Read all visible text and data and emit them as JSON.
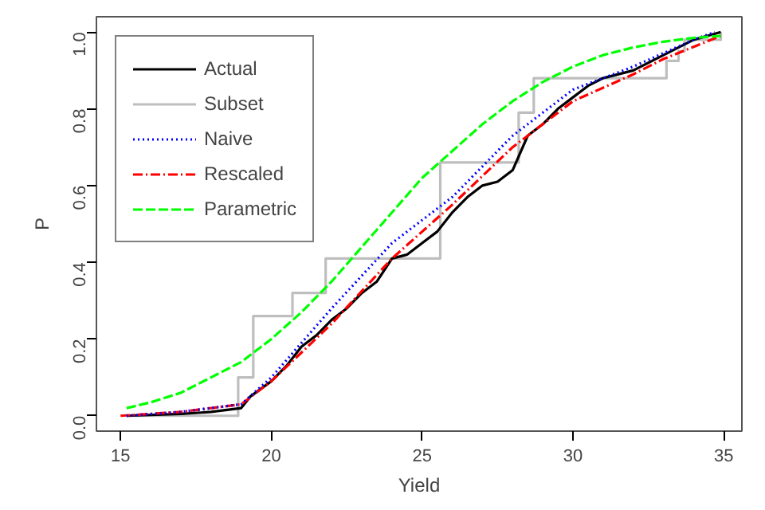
{
  "chart_data": {
    "type": "line",
    "xlabel": "Yield",
    "ylabel": "P",
    "xlim": [
      14.2,
      35.6
    ],
    "ylim": [
      -0.04,
      1.04
    ],
    "xticks": [
      15,
      20,
      25,
      30,
      35
    ],
    "yticks": [
      {
        "value": 0,
        "label": "0.0"
      },
      0.2,
      0.4,
      0.6,
      0.8,
      {
        "value": 1,
        "label": "1.0"
      }
    ],
    "grid": false,
    "legend": "top left",
    "series": [
      {
        "name": "Actual",
        "color": "#000000",
        "line_style": "solid",
        "x": [
          15.2,
          17,
          18,
          19,
          19.3,
          20,
          20.5,
          21,
          21.5,
          22,
          22.5,
          23,
          23.5,
          24,
          24.5,
          25,
          25.5,
          26,
          26.5,
          27,
          27.5,
          28,
          28.5,
          29,
          29.5,
          30,
          30.5,
          31,
          32,
          33,
          34,
          34.9
        ],
        "values": [
          0.0,
          0.005,
          0.01,
          0.02,
          0.05,
          0.09,
          0.13,
          0.18,
          0.21,
          0.25,
          0.28,
          0.32,
          0.35,
          0.41,
          0.42,
          0.45,
          0.48,
          0.53,
          0.57,
          0.6,
          0.61,
          0.64,
          0.73,
          0.76,
          0.8,
          0.83,
          0.86,
          0.88,
          0.9,
          0.94,
          0.98,
          1.0
        ]
      },
      {
        "name": "Subset",
        "color": "#bebebe",
        "type": "step",
        "line_style": "solid",
        "x": [
          15.2,
          18.9,
          19.4,
          20.7,
          21.8,
          25.6,
          28.2,
          28.7,
          33.1,
          33.5,
          33.7,
          34.9
        ],
        "values": [
          0.0,
          0.1,
          0.26,
          0.32,
          0.41,
          0.66,
          0.79,
          0.88,
          0.925,
          0.95,
          0.98,
          1.0
        ]
      },
      {
        "name": "Naive",
        "color": "#0000ff",
        "line_style": "dotted",
        "x": [
          15.2,
          17,
          19,
          20,
          22,
          24,
          26,
          28,
          30,
          32,
          34,
          34.7
        ],
        "values": [
          0.0,
          0.01,
          0.03,
          0.1,
          0.28,
          0.45,
          0.57,
          0.73,
          0.85,
          0.91,
          0.98,
          1.0
        ]
      },
      {
        "name": "Rescaled",
        "color": "#ff0000",
        "line_style": "dotdash",
        "x": [
          15.0,
          17,
          19,
          20,
          22,
          24,
          26,
          28,
          30,
          32,
          33,
          34.9
        ],
        "values": [
          0.0,
          0.01,
          0.03,
          0.09,
          0.24,
          0.41,
          0.55,
          0.7,
          0.82,
          0.89,
          0.93,
          0.99
        ]
      },
      {
        "name": "Parametric",
        "color": "#00ff00",
        "line_style": "dashed",
        "x": [
          15.2,
          16,
          17,
          18,
          19,
          20,
          21,
          22,
          23,
          24,
          25,
          26,
          27,
          28,
          29,
          30,
          31,
          32,
          33,
          34,
          34.9
        ],
        "values": [
          0.02,
          0.035,
          0.06,
          0.1,
          0.14,
          0.2,
          0.27,
          0.35,
          0.44,
          0.53,
          0.62,
          0.69,
          0.76,
          0.82,
          0.87,
          0.91,
          0.94,
          0.96,
          0.975,
          0.985,
          0.99
        ]
      }
    ]
  }
}
